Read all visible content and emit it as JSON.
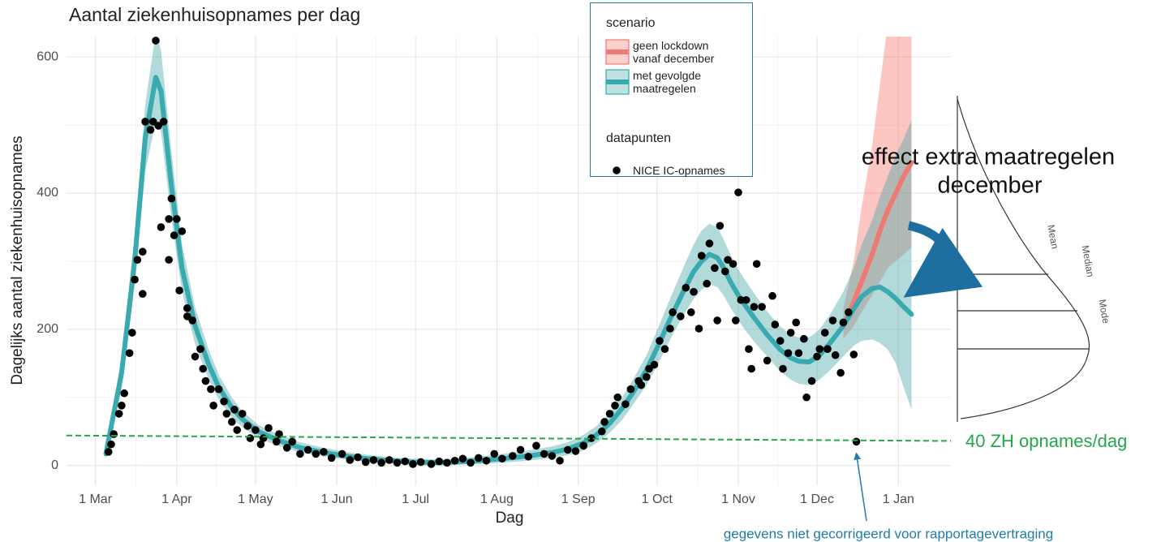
{
  "chart_data": {
    "type": "line",
    "title": "Aantal ziekenhuisopnames per dag",
    "x_label": "Dag",
    "y_label": "Dagelijks aantal ziekenhuisopnames",
    "xlim": [
      -11,
      326
    ],
    "ylim": [
      -29,
      630
    ],
    "xticks": [
      {
        "value": 0,
        "label": "1 Mar"
      },
      {
        "value": 31,
        "label": "1 Apr"
      },
      {
        "value": 61,
        "label": "1 May"
      },
      {
        "value": 92,
        "label": "1 Jun"
      },
      {
        "value": 122,
        "label": "1 Jul"
      },
      {
        "value": 153,
        "label": "1 Aug"
      },
      {
        "value": 184,
        "label": "1 Sep"
      },
      {
        "value": 214,
        "label": "1 Oct"
      },
      {
        "value": 245,
        "label": "1 Nov"
      },
      {
        "value": 275,
        "label": "1 Dec"
      },
      {
        "value": 306,
        "label": "1 Jan"
      }
    ],
    "yticks": [
      0,
      200,
      400,
      600
    ],
    "grid": true,
    "legend_position": "top-right",
    "legend_title": "scenario",
    "points_legend_title": "datapunten",
    "series": [
      {
        "name": "geen lockdown vanaf december",
        "type": "band-line",
        "color": "#f07a72",
        "band_color": "#f8766d",
        "x": [
          285,
          289,
          292,
          296,
          299,
          302,
          305,
          308,
          311
        ],
        "values": [
          205,
          240,
          270,
          310,
          345,
          375,
          400,
          425,
          445
        ],
        "upper": [
          230,
          300,
          380,
          470,
          560,
          650,
          700,
          700,
          700
        ],
        "lower": [
          185,
          205,
          225,
          250,
          270,
          290,
          300,
          310,
          320
        ]
      },
      {
        "name": "met gevolgde maatregelen",
        "type": "band-line",
        "color": "#38aab0",
        "band_color": "#4aa8a8",
        "x": [
          4,
          10,
          15,
          19,
          23,
          25,
          29,
          33,
          38,
          43,
          47,
          52,
          56,
          62,
          69,
          78,
          87,
          95,
          103,
          112,
          121,
          130,
          137,
          146,
          155,
          165,
          174,
          180,
          186,
          191,
          196,
          201,
          205,
          210,
          214,
          219,
          224,
          228,
          231,
          234,
          237,
          239,
          242,
          245,
          248,
          251,
          256,
          261,
          265,
          268,
          272,
          276,
          280,
          285,
          289,
          292,
          296,
          299,
          302,
          305,
          308,
          311
        ],
        "values": [
          17,
          136,
          302,
          481,
          570,
          550,
          410,
          290,
          205,
          150,
          115,
          85,
          68,
          50,
          38,
          26,
          19,
          14,
          10,
          7,
          5,
          4,
          5,
          7,
          10,
          14,
          19,
          24,
          33,
          45,
          62,
          85,
          108,
          140,
          172,
          215,
          255,
          285,
          300,
          310,
          305,
          293,
          270,
          250,
          233,
          217,
          192,
          170,
          158,
          153,
          152,
          162,
          180,
          205,
          230,
          248,
          260,
          262,
          255,
          245,
          233,
          222
        ],
        "upper": [
          25,
          160,
          340,
          530,
          636,
          610,
          460,
          325,
          232,
          172,
          133,
          100,
          80,
          60,
          47,
          34,
          26,
          20,
          16,
          12,
          10,
          9,
          10,
          13,
          17,
          22,
          28,
          34,
          45,
          58,
          77,
          102,
          127,
          162,
          198,
          245,
          290,
          325,
          345,
          355,
          350,
          335,
          310,
          288,
          270,
          253,
          226,
          204,
          192,
          188,
          188,
          200,
          222,
          255,
          290,
          325,
          360,
          395,
          425,
          455,
          480,
          507
        ],
        "lower": [
          10,
          112,
          265,
          432,
          505,
          490,
          362,
          255,
          178,
          128,
          97,
          70,
          56,
          40,
          30,
          19,
          13,
          9,
          5,
          3,
          1,
          0,
          1,
          2,
          4,
          7,
          11,
          15,
          22,
          33,
          48,
          68,
          90,
          118,
          146,
          185,
          220,
          245,
          258,
          266,
          262,
          252,
          232,
          213,
          197,
          182,
          160,
          138,
          126,
          120,
          118,
          126,
          140,
          160,
          176,
          183,
          185,
          180,
          170,
          150,
          115,
          82
        ]
      },
      {
        "name": "NICE IC-opnames",
        "type": "scatter",
        "color": "#000000",
        "x": [
          5,
          6,
          7,
          9,
          10,
          11,
          13,
          14,
          15,
          16,
          18,
          18,
          19,
          21,
          22,
          23,
          24,
          25,
          26,
          28,
          28,
          29,
          30,
          31,
          32,
          33,
          35,
          35,
          37,
          38,
          40,
          41,
          42,
          44,
          45,
          47,
          49,
          50,
          52,
          53,
          54,
          56,
          58,
          59,
          61,
          63,
          64,
          66,
          69,
          70,
          73,
          75,
          78,
          81,
          84,
          87,
          90,
          94,
          97,
          100,
          103,
          106,
          109,
          112,
          115,
          118,
          121,
          124,
          128,
          131,
          134,
          137,
          140,
          143,
          146,
          149,
          152,
          155,
          159,
          162,
          165,
          168,
          171,
          174,
          177,
          180,
          183,
          186,
          189,
          193,
          194,
          196,
          198,
          199,
          202,
          204,
          207,
          208,
          210,
          211,
          213,
          215,
          217,
          219,
          220,
          223,
          225,
          227,
          228,
          230,
          231,
          233,
          234,
          236,
          237,
          238,
          240,
          241,
          243,
          244,
          245,
          246,
          248,
          249,
          250,
          251,
          252,
          254,
          256,
          258,
          259,
          261,
          262,
          264,
          265,
          267,
          268,
          270,
          271,
          273,
          275,
          276,
          278,
          279,
          281,
          282,
          284,
          285,
          287,
          289,
          290
        ],
        "values": [
          20,
          31,
          46,
          76,
          88,
          106,
          165,
          195,
          273,
          302,
          252,
          314,
          505,
          493,
          505,
          624,
          499,
          350,
          505,
          362,
          302,
          392,
          338,
          362,
          257,
          344,
          231,
          219,
          213,
          160,
          171,
          142,
          124,
          112,
          88,
          112,
          94,
          76,
          64,
          82,
          52,
          76,
          58,
          40,
          52,
          31,
          40,
          55,
          35,
          46,
          26,
          35,
          17,
          23,
          17,
          20,
          11,
          17,
          8,
          12,
          5,
          8,
          4,
          8,
          4,
          6,
          2,
          5,
          2,
          6,
          4,
          7,
          10,
          4,
          11,
          7,
          17,
          10,
          14,
          23,
          13,
          29,
          17,
          14,
          7,
          23,
          21,
          29,
          40,
          50,
          64,
          76,
          88,
          100,
          90,
          112,
          124,
          118,
          130,
          142,
          148,
          183,
          171,
          201,
          225,
          219,
          261,
          225,
          255,
          201,
          308,
          267,
          326,
          290,
          213,
          352,
          285,
          302,
          296,
          213,
          401,
          243,
          243,
          171,
          142,
          233,
          296,
          233,
          154,
          249,
          207,
          183,
          142,
          165,
          195,
          210,
          165,
          186,
          100,
          124,
          160,
          171,
          195,
          171,
          213,
          162,
          136,
          210,
          225,
          163,
          35
        ]
      }
    ],
    "reference_line": {
      "x": [
        -11,
        326
      ],
      "values": [
        44,
        36
      ],
      "color": "#22a84a",
      "label": "40 ZH opnames/dag"
    },
    "annotations": {
      "effect": [
        "effect extra maatregelen",
        "december"
      ],
      "note": "gegevens niet gecorrigeerd voor rapportagevertraging",
      "inset_labels": [
        "Mean",
        "Median",
        "Mode"
      ]
    }
  }
}
